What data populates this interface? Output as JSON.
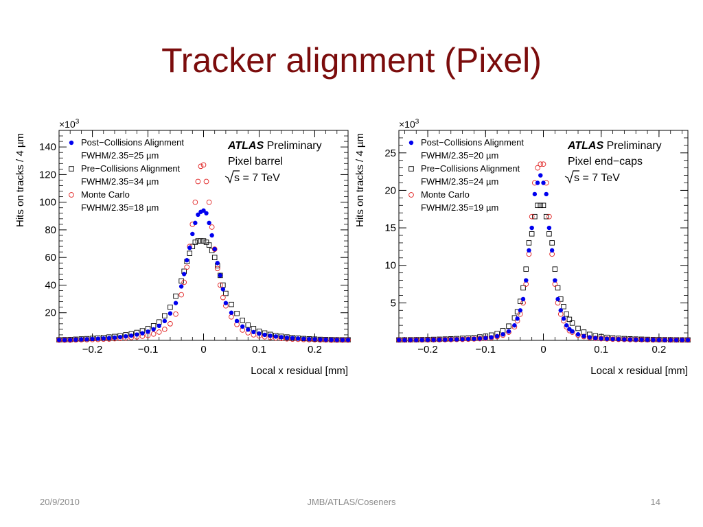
{
  "slide": {
    "title": "Tracker alignment (Pixel)",
    "footer": {
      "date": "20/9/2010",
      "center": "JMB/ATLAS/Coseners",
      "page": "14"
    }
  },
  "colors": {
    "title": "#7b0c0c",
    "post": "#0000ee",
    "pre": "#000000",
    "mc": "#e02020"
  },
  "chart_data": [
    {
      "type": "scatter",
      "title": "",
      "xlabel": "Local x residual [mm]",
      "ylabel": "Hits on tracks / 4 µm",
      "y_multiplier": "×10",
      "y_multiplier_exp": "3",
      "xlim": [
        -0.26,
        0.26
      ],
      "ylim": [
        0,
        152
      ],
      "xticks": [
        -0.2,
        -0.1,
        0,
        0.1,
        0.2
      ],
      "xtick_labels": [
        "−0.2",
        "−0.1",
        "0",
        "0.1",
        "0.2"
      ],
      "yticks": [
        20,
        40,
        60,
        80,
        100,
        120,
        140
      ],
      "ytick_labels": [
        "20",
        "40",
        "60",
        "80",
        "100",
        "120",
        "140"
      ],
      "atlas_label": "ATLAS",
      "atlas_sub": "Preliminary",
      "info_lines": [
        "Pixel barrel",
        "s = 7 TeV"
      ],
      "legend_position": "top-left",
      "legend": [
        {
          "name": "Post−Collisions Alignment",
          "detail": "FWHM/2.35=25 µm",
          "marker": "filled-circle",
          "color": "#0000ee"
        },
        {
          "name": "Pre−Collisions Alignment",
          "detail": "FWHM/2.35=34 µm",
          "marker": "open-square",
          "color": "#000000"
        },
        {
          "name": "Monte Carlo",
          "detail": "FWHM/2.35=18 µm",
          "marker": "open-circle",
          "color": "#e02020"
        }
      ],
      "x": [
        -0.26,
        -0.25,
        -0.24,
        -0.23,
        -0.22,
        -0.21,
        -0.2,
        -0.19,
        -0.18,
        -0.17,
        -0.16,
        -0.15,
        -0.14,
        -0.13,
        -0.12,
        -0.11,
        -0.1,
        -0.09,
        -0.08,
        -0.07,
        -0.06,
        -0.05,
        -0.04,
        -0.035,
        -0.03,
        -0.025,
        -0.02,
        -0.015,
        -0.01,
        -0.005,
        0,
        0.005,
        0.01,
        0.015,
        0.02,
        0.025,
        0.03,
        0.035,
        0.04,
        0.05,
        0.06,
        0.07,
        0.08,
        0.09,
        0.1,
        0.11,
        0.12,
        0.13,
        0.14,
        0.15,
        0.16,
        0.17,
        0.18,
        0.19,
        0.2,
        0.21,
        0.22,
        0.23,
        0.24,
        0.25,
        0.26
      ],
      "series": [
        {
          "name": "Post−Collisions Alignment",
          "values": [
            0.3,
            0.3,
            0.3,
            0.5,
            0.7,
            0.8,
            1,
            1.2,
            1.4,
            1.7,
            2,
            2.4,
            2.9,
            3.4,
            4.2,
            5.1,
            6.3,
            8,
            10.5,
            14,
            19.5,
            27,
            39,
            48,
            58,
            67,
            77,
            85,
            91,
            93,
            94,
            92,
            85,
            76,
            66,
            56,
            47,
            37,
            27,
            20,
            14,
            10,
            7.8,
            6,
            4.9,
            4,
            3.3,
            2.8,
            2.3,
            1.9,
            1.6,
            1.3,
            1.1,
            0.9,
            0.8,
            0.6,
            0.5,
            0.4,
            0.3,
            0.3,
            0.3
          ]
        },
        {
          "name": "Pre−Collisions Alignment",
          "values": [
            0.4,
            0.5,
            0.6,
            0.8,
            1,
            1.2,
            1.4,
            1.7,
            2,
            2.4,
            2.8,
            3.3,
            4,
            4.7,
            5.7,
            6.9,
            8.5,
            10.5,
            13.3,
            17.8,
            24,
            32,
            43,
            50,
            57,
            63,
            68,
            71,
            72,
            72,
            72,
            71,
            69,
            65,
            60,
            54,
            47,
            40,
            34,
            26,
            19.5,
            14.5,
            11,
            8.5,
            6.6,
            5.3,
            4.3,
            3.5,
            2.9,
            2.4,
            2,
            1.6,
            1.3,
            1.1,
            0.9,
            0.7,
            0.6,
            0.5,
            0.4,
            0.4,
            0.4
          ]
        },
        {
          "name": "Monte Carlo",
          "values": [
            0.2,
            0.2,
            0.2,
            0.3,
            0.4,
            0.5,
            0.6,
            0.7,
            0.9,
            1,
            1.2,
            1.4,
            1.7,
            2.1,
            2.5,
            3,
            3.6,
            4.6,
            6,
            8,
            12,
            19,
            33,
            42,
            53,
            68,
            84,
            100,
            115,
            126,
            127,
            115,
            100,
            82,
            66,
            52,
            40,
            31,
            25,
            17,
            11.5,
            7.5,
            5.5,
            4,
            3.2,
            2.6,
            2.1,
            1.7,
            1.4,
            1.1,
            0.9,
            0.8,
            0.6,
            0.5,
            0.4,
            0.3,
            0.3,
            0.2,
            0.2,
            0.2,
            0.2
          ]
        }
      ]
    },
    {
      "type": "scatter",
      "title": "",
      "xlabel": "Local x residual [mm]",
      "ylabel": "Hits on tracks / 4 µm",
      "y_multiplier": "×10",
      "y_multiplier_exp": "3",
      "xlim": [
        -0.25,
        0.25
      ],
      "ylim": [
        0,
        28
      ],
      "xticks": [
        -0.2,
        -0.1,
        0,
        0.1,
        0.2
      ],
      "xtick_labels": [
        "−0.2",
        "−0.1",
        "0",
        "0.1",
        "0.2"
      ],
      "yticks": [
        5,
        10,
        15,
        20,
        25
      ],
      "ytick_labels": [
        "5",
        "10",
        "15",
        "20",
        "25"
      ],
      "atlas_label": "ATLAS",
      "atlas_sub": "Preliminary",
      "info_lines": [
        "Pixel end−caps",
        "s = 7 TeV"
      ],
      "legend_position": "top-left",
      "legend": [
        {
          "name": "Post−Collisions Alignment",
          "detail": "FWHM/2.35=20 µm",
          "marker": "filled-circle",
          "color": "#0000ee"
        },
        {
          "name": "Pre−Collisions Alignment",
          "detail": "FWHM/2.35=24 µm",
          "marker": "open-square",
          "color": "#000000"
        },
        {
          "name": "Monte Carlo",
          "detail": "FWHM/2.35=19 µm",
          "marker": "open-circle",
          "color": "#e02020"
        }
      ],
      "x": [
        -0.25,
        -0.24,
        -0.23,
        -0.22,
        -0.21,
        -0.2,
        -0.19,
        -0.18,
        -0.17,
        -0.16,
        -0.15,
        -0.14,
        -0.13,
        -0.12,
        -0.11,
        -0.1,
        -0.09,
        -0.08,
        -0.07,
        -0.06,
        -0.05,
        -0.045,
        -0.04,
        -0.035,
        -0.03,
        -0.025,
        -0.02,
        -0.015,
        -0.01,
        -0.005,
        0,
        0.005,
        0.01,
        0.015,
        0.02,
        0.025,
        0.03,
        0.035,
        0.04,
        0.045,
        0.05,
        0.06,
        0.07,
        0.08,
        0.09,
        0.1,
        0.11,
        0.12,
        0.13,
        0.14,
        0.15,
        0.16,
        0.17,
        0.18,
        0.19,
        0.2,
        0.21,
        0.22,
        0.23,
        0.24,
        0.25
      ],
      "series": [
        {
          "name": "Post−Collisions Alignment",
          "values": [
            0.05,
            0.05,
            0.05,
            0.05,
            0.06,
            0.07,
            0.08,
            0.09,
            0.1,
            0.11,
            0.13,
            0.15,
            0.17,
            0.2,
            0.24,
            0.3,
            0.4,
            0.55,
            0.8,
            1.2,
            2,
            2.9,
            4,
            5.5,
            8,
            12,
            15,
            19.5,
            21,
            22,
            21,
            19.5,
            15,
            12,
            8,
            5.5,
            4,
            2.9,
            2,
            1.5,
            1.2,
            0.8,
            0.55,
            0.4,
            0.3,
            0.24,
            0.2,
            0.17,
            0.15,
            0.13,
            0.11,
            0.1,
            0.09,
            0.08,
            0.07,
            0.06,
            0.05,
            0.05,
            0.05,
            0.05,
            0.05
          ]
        },
        {
          "name": "Pre−Collisions Alignment",
          "values": [
            0.06,
            0.07,
            0.08,
            0.09,
            0.1,
            0.11,
            0.13,
            0.15,
            0.17,
            0.2,
            0.23,
            0.27,
            0.32,
            0.38,
            0.45,
            0.55,
            0.7,
            0.9,
            1.3,
            1.9,
            3,
            3.8,
            5.2,
            7,
            9.5,
            13,
            14.2,
            16.5,
            18,
            18,
            18,
            16.5,
            14.2,
            13,
            9.5,
            7,
            5.5,
            4.5,
            3.5,
            2.8,
            2.3,
            1.6,
            1.1,
            0.8,
            0.6,
            0.5,
            0.4,
            0.33,
            0.27,
            0.23,
            0.2,
            0.17,
            0.15,
            0.13,
            0.11,
            0.1,
            0.09,
            0.08,
            0.07,
            0.06,
            0.06
          ]
        },
        {
          "name": "Monte Carlo",
          "values": [
            0.04,
            0.04,
            0.04,
            0.05,
            0.05,
            0.06,
            0.07,
            0.08,
            0.09,
            0.1,
            0.12,
            0.14,
            0.16,
            0.19,
            0.23,
            0.28,
            0.35,
            0.5,
            0.7,
            1.1,
            1.8,
            2.6,
            3.5,
            5,
            7.5,
            11.5,
            16.5,
            21,
            23,
            23.5,
            23.5,
            21,
            16.5,
            11.5,
            7.5,
            5,
            3.5,
            2.6,
            1.8,
            1.3,
            1.1,
            0.7,
            0.5,
            0.35,
            0.28,
            0.23,
            0.19,
            0.16,
            0.14,
            0.12,
            0.1,
            0.09,
            0.08,
            0.07,
            0.06,
            0.05,
            0.05,
            0.04,
            0.04,
            0.04,
            0.04
          ]
        }
      ]
    }
  ]
}
